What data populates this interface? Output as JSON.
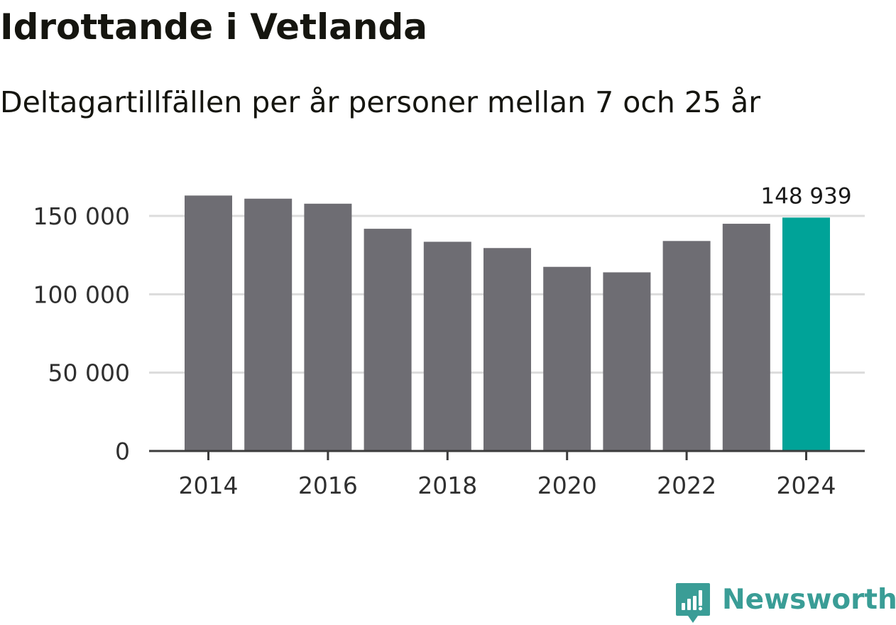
{
  "chart_data": {
    "type": "bar",
    "title": "Idrottande i Vetlanda",
    "subtitle": "Deltagartillfällen per år personer mellan 7 och 25 år",
    "categories": [
      "2014",
      "2015",
      "2016",
      "2017",
      "2018",
      "2019",
      "2020",
      "2021",
      "2022",
      "2023",
      "2024"
    ],
    "values": [
      163000,
      161000,
      157800,
      141800,
      133500,
      129500,
      117500,
      114000,
      134000,
      145000,
      148939
    ],
    "highlight_index": 10,
    "data_label": "148 939",
    "x_tick_labels": [
      "2014",
      "2016",
      "2018",
      "2020",
      "2022",
      "2024"
    ],
    "y_ticks": [
      0,
      50000,
      100000,
      150000
    ],
    "y_tick_labels": [
      "0",
      "50 000",
      "100 000",
      "150 000"
    ],
    "ylim": [
      0,
      163000
    ],
    "xlabel": "",
    "ylabel": "",
    "grid": true,
    "colors": {
      "bar": "#6e6d73",
      "highlight": "#00a398",
      "grid": "#dcdcdc",
      "axis": "#3c3c3c",
      "tick_text": "#2f2f2f"
    }
  },
  "branding": {
    "name": "Newsworthy",
    "icon": "newsworthy-logo-icon",
    "color": "#3a9d96"
  }
}
